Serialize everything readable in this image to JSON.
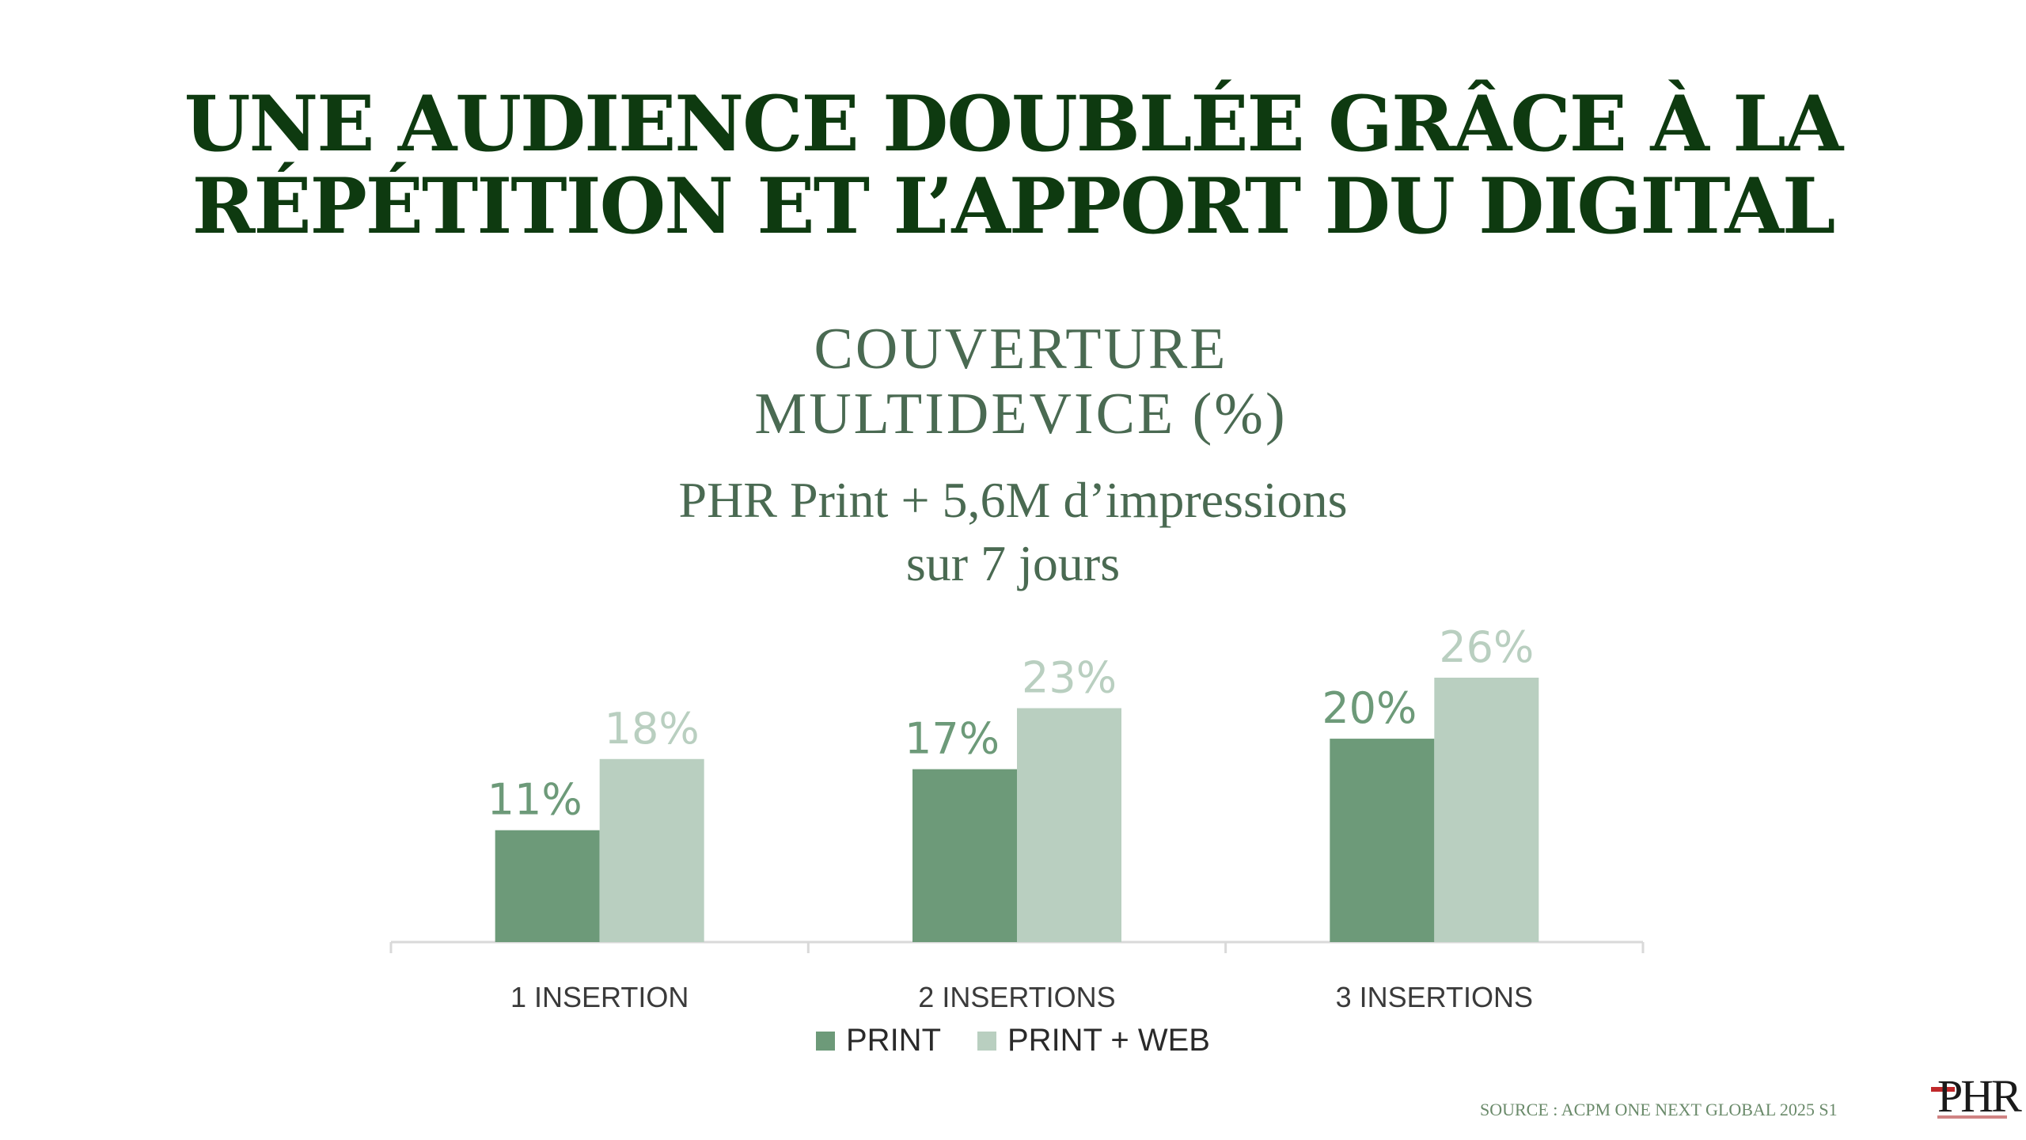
{
  "headline": {
    "line1": "UNE AUDIENCE DOUBLÉE GRÂCE À LA",
    "line2": "RÉPÉTITION ET L’APPORT DU DIGITAL"
  },
  "chart_data": {
    "type": "bar",
    "title": "COUVERTURE MULTIDEVICE (%)",
    "subtitle_line1": "PHR Print + 5,6M d’impressions",
    "subtitle_line2": "sur 7 jours",
    "categories": [
      "1 INSERTION",
      "2 INSERTIONS",
      "3 INSERTIONS"
    ],
    "series": [
      {
        "name": "PRINT",
        "values": [
          11,
          17,
          20
        ],
        "labels": [
          "11%",
          "17%",
          "20%"
        ],
        "color": "#6d9a79"
      },
      {
        "name": "PRINT + WEB",
        "values": [
          18,
          23,
          26
        ],
        "labels": [
          "18%",
          "23%",
          "26%"
        ],
        "color": "#b9cfc0"
      }
    ],
    "ylim": [
      0,
      26
    ],
    "grid": false,
    "legend": "bottom-center",
    "unit": "%"
  },
  "title_color": "#0e3a10",
  "footer": {
    "source": "SOURCE : ACPM ONE NEXT GLOBAL 2025 S1",
    "logo": "PHR"
  }
}
